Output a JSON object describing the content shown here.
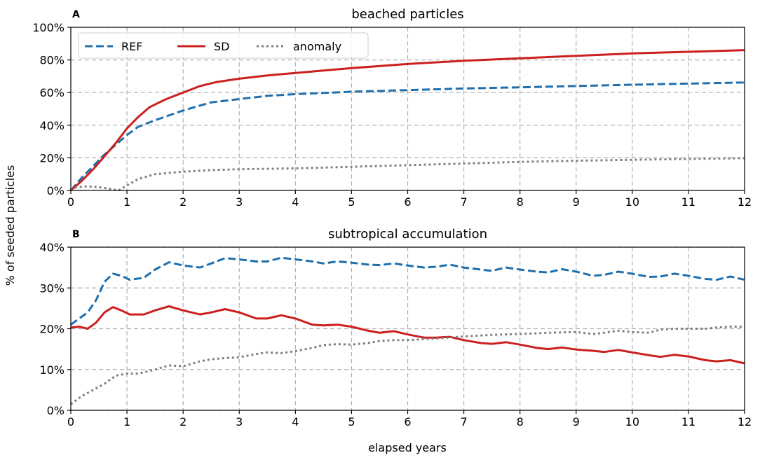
{
  "figure": {
    "xlabel": "elapsed years",
    "ylabel": "% of seeded particles"
  },
  "legend": {
    "entries": [
      {
        "label": "REF",
        "color": "#1f6fad",
        "style": "dashed"
      },
      {
        "label": "SD",
        "color": "#cc1f1f",
        "style": "solid"
      },
      {
        "label": "anomaly",
        "color": "#7f7f7f",
        "style": "dotted"
      }
    ]
  },
  "chart_data": [
    {
      "type": "line",
      "panel_label": "A",
      "title": "beached particles",
      "xlabel": "",
      "ylabel": "% of seeded particles",
      "xlim": [
        0,
        12
      ],
      "ylim": [
        0,
        100
      ],
      "x_ticks": [
        "0",
        "1",
        "2",
        "3",
        "4",
        "5",
        "6",
        "7",
        "8",
        "9",
        "10",
        "11",
        "12"
      ],
      "y_ticks": [
        "0%",
        "20%",
        "40%",
        "60%",
        "80%",
        "100%"
      ],
      "grid": true,
      "legend": "top-left",
      "series": [
        {
          "name": "REF",
          "color": "#1f6fad",
          "style": "dashed",
          "x": [
            0,
            0.2,
            0.4,
            0.6,
            0.8,
            1.0,
            1.2,
            1.5,
            2.0,
            2.5,
            3,
            3.5,
            4,
            5,
            6,
            7,
            8,
            9,
            10,
            11,
            12
          ],
          "y": [
            0,
            8,
            15,
            22,
            28,
            34,
            39,
            43,
            49,
            54,
            56,
            58,
            59,
            60.5,
            61.5,
            62.5,
            63.2,
            64,
            64.8,
            65.5,
            66.2
          ]
        },
        {
          "name": "SD",
          "color": "#cc1f1f",
          "style": "solid",
          "x": [
            0,
            0.2,
            0.4,
            0.6,
            0.8,
            1.0,
            1.2,
            1.4,
            1.7,
            2.0,
            2.3,
            2.6,
            3,
            3.5,
            4,
            5,
            6,
            7,
            8,
            9,
            10,
            11,
            12
          ],
          "y": [
            0,
            6,
            13,
            21,
            29,
            38,
            45,
            51,
            56,
            60,
            64,
            66.5,
            68.5,
            70.5,
            72,
            75,
            77.5,
            79.5,
            81,
            82.5,
            84,
            85,
            86
          ]
        },
        {
          "name": "anomaly",
          "color": "#7f7f7f",
          "style": "dotted",
          "x": [
            0,
            0.1,
            0.3,
            0.5,
            0.7,
            0.85,
            1.0,
            1.2,
            1.5,
            2.0,
            2.5,
            3,
            4,
            5,
            6,
            7,
            8,
            9,
            10,
            11,
            12
          ],
          "y": [
            0,
            2,
            2.5,
            2,
            1,
            0,
            3,
            7,
            10,
            11.5,
            12.5,
            13,
            13.5,
            14.5,
            15.5,
            16.5,
            17.5,
            18.2,
            18.8,
            19.3,
            19.8
          ]
        }
      ]
    },
    {
      "type": "line",
      "panel_label": "B",
      "title": "subtropical accumulation",
      "xlabel": "elapsed years",
      "ylabel": "% of seeded particles",
      "xlim": [
        0,
        12
      ],
      "ylim": [
        0,
        40
      ],
      "x_ticks": [
        "0",
        "1",
        "2",
        "3",
        "4",
        "5",
        "6",
        "7",
        "8",
        "9",
        "10",
        "11",
        "12"
      ],
      "y_ticks": [
        "0%",
        "10%",
        "20%",
        "30%",
        "40%"
      ],
      "grid": true,
      "series": [
        {
          "name": "REF",
          "color": "#1f6fad",
          "style": "dashed",
          "x": [
            0,
            0.15,
            0.3,
            0.45,
            0.6,
            0.75,
            0.9,
            1.05,
            1.3,
            1.5,
            1.75,
            2.0,
            2.3,
            2.5,
            2.75,
            3.0,
            3.3,
            3.5,
            3.75,
            4.0,
            4.3,
            4.5,
            4.75,
            5.0,
            5.3,
            5.5,
            5.75,
            6.0,
            6.3,
            6.5,
            6.75,
            7.0,
            7.3,
            7.5,
            7.75,
            8.0,
            8.3,
            8.5,
            8.75,
            9.0,
            9.3,
            9.5,
            9.75,
            10.0,
            10.3,
            10.5,
            10.75,
            11.0,
            11.3,
            11.5,
            11.75,
            12.0
          ],
          "y": [
            21,
            22.5,
            24,
            27,
            31.5,
            33.5,
            33,
            32,
            32.5,
            34.5,
            36.3,
            35.5,
            35,
            36,
            37.3,
            37,
            36.5,
            36.5,
            37.4,
            37,
            36.5,
            36,
            36.5,
            36.2,
            35.7,
            35.6,
            36,
            35.5,
            35,
            35.2,
            35.7,
            35,
            34.5,
            34.2,
            35,
            34.5,
            34,
            33.8,
            34.6,
            34,
            33,
            33.2,
            34,
            33.5,
            32.7,
            32.8,
            33.5,
            33,
            32.2,
            32,
            32.8,
            32
          ]
        },
        {
          "name": "SD",
          "color": "#cc1f1f",
          "style": "solid",
          "x": [
            0,
            0.15,
            0.3,
            0.45,
            0.6,
            0.75,
            0.9,
            1.05,
            1.3,
            1.5,
            1.75,
            2.0,
            2.3,
            2.5,
            2.75,
            3.0,
            3.3,
            3.5,
            3.75,
            4.0,
            4.3,
            4.5,
            4.75,
            5.0,
            5.3,
            5.5,
            5.75,
            6.0,
            6.3,
            6.5,
            6.75,
            7.0,
            7.3,
            7.5,
            7.75,
            8.0,
            8.3,
            8.5,
            8.75,
            9.0,
            9.3,
            9.5,
            9.75,
            10.0,
            10.3,
            10.5,
            10.75,
            11.0,
            11.3,
            11.5,
            11.75,
            12.0
          ],
          "y": [
            20.3,
            20.5,
            20,
            21.5,
            24,
            25.3,
            24.5,
            23.5,
            23.5,
            24.5,
            25.5,
            24.5,
            23.5,
            24,
            24.8,
            24,
            22.5,
            22.5,
            23.3,
            22.5,
            21,
            20.8,
            21,
            20.5,
            19.5,
            19,
            19.4,
            18.6,
            17.8,
            17.8,
            18,
            17.2,
            16.5,
            16.3,
            16.7,
            16.1,
            15.3,
            15,
            15.4,
            14.9,
            14.6,
            14.3,
            14.8,
            14.2,
            13.5,
            13.1,
            13.6,
            13.2,
            12.3,
            12,
            12.3,
            11.5
          ]
        },
        {
          "name": "anomaly",
          "color": "#7f7f7f",
          "style": "dotted",
          "x": [
            0,
            0.2,
            0.4,
            0.6,
            0.8,
            1.0,
            1.2,
            1.5,
            1.75,
            2.0,
            2.3,
            2.5,
            2.75,
            3.0,
            3.3,
            3.5,
            3.75,
            4.0,
            4.3,
            4.5,
            4.75,
            5.0,
            5.3,
            5.5,
            5.75,
            6.0,
            6.5,
            7.0,
            7.5,
            8.0,
            8.5,
            9.0,
            9.3,
            9.5,
            9.75,
            10.0,
            10.3,
            10.5,
            10.75,
            11.0,
            11.3,
            11.5,
            11.75,
            12.0
          ],
          "y": [
            1.5,
            3.5,
            5,
            6.5,
            8.5,
            9,
            9,
            10,
            11,
            10.8,
            12,
            12.5,
            12.8,
            13,
            13.8,
            14.2,
            14,
            14.5,
            15.3,
            16,
            16.2,
            16.1,
            16.5,
            17,
            17.2,
            17.2,
            17.6,
            18.1,
            18.5,
            18.7,
            19,
            19.2,
            18.7,
            19,
            19.5,
            19.2,
            19,
            19.8,
            20,
            20,
            20,
            20.3,
            20.5,
            20.5
          ]
        }
      ]
    }
  ]
}
